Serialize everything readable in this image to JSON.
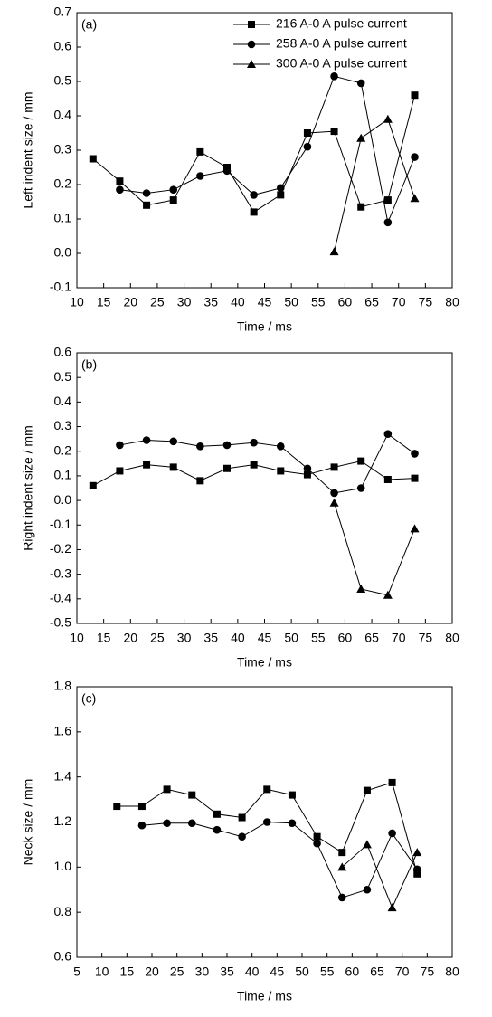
{
  "chart_data": [
    {
      "type": "line",
      "annotation": "(a)",
      "x_label": "Time / ms",
      "y_label": "Left indent size / mm",
      "x": [
        13,
        18,
        23,
        28,
        33,
        38,
        43,
        48,
        53,
        58,
        63,
        68,
        73
      ],
      "series": [
        {
          "name": "216 A-0 A pulse current",
          "color": "#000000",
          "marker": "square",
          "values": [
            0.275,
            0.21,
            0.14,
            0.155,
            0.295,
            0.25,
            0.12,
            0.17,
            0.35,
            0.355,
            0.135,
            0.155,
            0.46
          ]
        },
        {
          "name": "258 A-0 A pulse current",
          "color": "#000000",
          "marker": "circle",
          "values": [
            null,
            0.185,
            0.175,
            0.185,
            0.225,
            0.24,
            0.17,
            0.19,
            0.31,
            0.515,
            0.495,
            0.09,
            0.28
          ]
        },
        {
          "name": "300 A-0 A pulse current",
          "color": "#000000",
          "marker": "triangle",
          "values": [
            null,
            null,
            null,
            null,
            null,
            null,
            null,
            null,
            null,
            0.005,
            0.335,
            0.39,
            0.16
          ]
        }
      ],
      "xlim": [
        10,
        80
      ],
      "xticks": [
        10,
        15,
        20,
        25,
        30,
        35,
        40,
        45,
        50,
        55,
        60,
        65,
        70,
        75,
        80
      ],
      "ylim": [
        -0.1,
        0.7
      ],
      "yticks": [
        -0.1,
        {
          "value": 0,
          "label": "0.0"
        },
        0.1,
        0.2,
        0.3,
        0.4,
        0.5,
        0.6,
        0.7
      ],
      "legend": "top-right"
    },
    {
      "type": "line",
      "annotation": "(b)",
      "x_label": "Time / ms",
      "y_label": "Right indent size / mm",
      "x": [
        13,
        18,
        23,
        28,
        33,
        38,
        43,
        48,
        53,
        58,
        63,
        68,
        73
      ],
      "series": [
        {
          "color": "#000000",
          "marker": "square",
          "values": [
            0.06,
            0.12,
            0.145,
            0.135,
            0.08,
            0.13,
            0.145,
            0.12,
            0.105,
            0.135,
            0.16,
            0.085,
            0.09
          ]
        },
        {
          "color": "#000000",
          "marker": "circle",
          "values": [
            null,
            0.225,
            0.245,
            0.24,
            0.22,
            0.225,
            0.235,
            0.22,
            0.13,
            0.03,
            0.05,
            0.27,
            0.19
          ]
        },
        {
          "color": "#000000",
          "marker": "triangle",
          "values": [
            null,
            null,
            null,
            null,
            null,
            null,
            null,
            null,
            null,
            -0.01,
            -0.36,
            -0.385,
            -0.115
          ]
        }
      ],
      "xlim": [
        10,
        80
      ],
      "xticks": [
        10,
        15,
        20,
        25,
        30,
        35,
        40,
        45,
        50,
        55,
        60,
        65,
        70,
        75,
        80
      ],
      "ylim": [
        -0.5,
        0.6
      ],
      "yticks": [
        -0.5,
        -0.4,
        -0.3,
        -0.2,
        -0.1,
        {
          "value": 0,
          "label": "0.0"
        },
        0.1,
        0.2,
        0.3,
        0.4,
        0.5,
        0.6
      ]
    },
    {
      "type": "line",
      "annotation": "(c)",
      "x_label": "Time / ms",
      "y_label": "Neck size / mm",
      "x": [
        13,
        18,
        23,
        28,
        33,
        38,
        43,
        48,
        53,
        58,
        63,
        68,
        73
      ],
      "series": [
        {
          "color": "#000000",
          "marker": "square",
          "values": [
            1.27,
            1.27,
            1.345,
            1.32,
            1.235,
            1.22,
            1.345,
            1.32,
            1.135,
            1.065,
            1.34,
            1.375,
            0.97
          ]
        },
        {
          "color": "#000000",
          "marker": "circle",
          "values": [
            null,
            1.185,
            1.195,
            1.195,
            1.165,
            1.135,
            1.2,
            1.195,
            1.105,
            0.865,
            0.9,
            1.15,
            0.99
          ]
        },
        {
          "color": "#000000",
          "marker": "triangle",
          "values": [
            null,
            null,
            null,
            null,
            null,
            null,
            null,
            null,
            null,
            1.0,
            1.1,
            0.82,
            1.065
          ]
        }
      ],
      "xlim": [
        5,
        80
      ],
      "xticks": [
        5,
        10,
        15,
        20,
        25,
        30,
        35,
        40,
        45,
        50,
        55,
        60,
        65,
        70,
        75,
        80
      ],
      "ylim": [
        0.6,
        1.8
      ],
      "yticks": [
        0.6,
        0.8,
        {
          "value": 1,
          "label": "1.0"
        },
        1.2,
        1.4,
        1.6,
        1.8
      ]
    }
  ]
}
